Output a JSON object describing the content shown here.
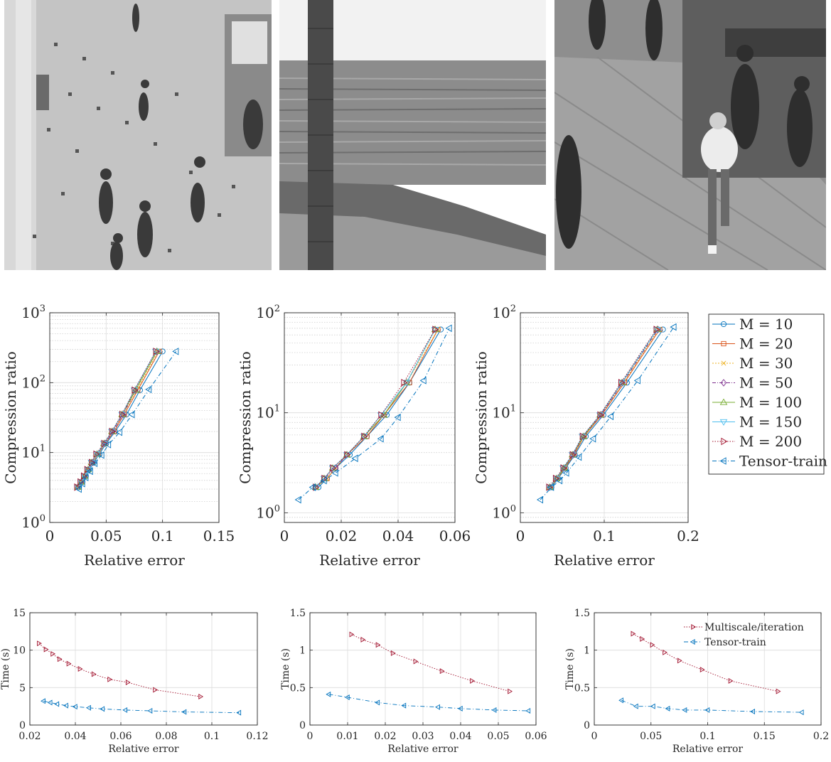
{
  "photos": [
    {
      "name": "photo-shopping-mall"
    },
    {
      "name": "photo-palm-sea"
    },
    {
      "name": "photo-hall-people"
    }
  ],
  "colors": {
    "M10": "#0072bd",
    "M20": "#d95319",
    "M30": "#edb120",
    "M50": "#7e2f8e",
    "M100": "#77ac30",
    "M150": "#4dbeee",
    "M200": "#a2142f",
    "TT": "#0072bd"
  },
  "chart_data": [
    {
      "type": "line",
      "scale": "log",
      "xlabel": "Relative error",
      "ylabel": "Compression ratio",
      "xlim": [
        0,
        0.15
      ],
      "ylim": [
        1,
        1000
      ],
      "xticks": [
        0,
        0.05,
        0.1,
        0.15
      ],
      "xtick_labels": [
        "0",
        "0.05",
        "0.1",
        "0.15"
      ],
      "ytick_exps": [
        0,
        1,
        2,
        3
      ],
      "grid": true,
      "series": [
        {
          "name": "M = 10",
          "key": "M10",
          "x": [
            0.026,
            0.029,
            0.032,
            0.035,
            0.039,
            0.044,
            0.05,
            0.058,
            0.068,
            0.08,
            0.1
          ],
          "y": [
            3.2,
            3.8,
            4.6,
            5.7,
            7.2,
            9.5,
            13.5,
            20,
            35,
            78,
            280
          ]
        },
        {
          "name": "M = 20",
          "key": "M20",
          "x": [
            0.025,
            0.028,
            0.031,
            0.034,
            0.038,
            0.043,
            0.049,
            0.057,
            0.066,
            0.078,
            0.097
          ],
          "y": [
            3.2,
            3.8,
            4.6,
            5.7,
            7.2,
            9.5,
            13.5,
            20,
            35,
            78,
            280
          ]
        },
        {
          "name": "M = 30",
          "key": "M30",
          "x": [
            0.025,
            0.028,
            0.031,
            0.034,
            0.038,
            0.043,
            0.049,
            0.056,
            0.065,
            0.077,
            0.096
          ],
          "y": [
            3.2,
            3.8,
            4.6,
            5.7,
            7.2,
            9.5,
            13.5,
            20,
            35,
            78,
            280
          ]
        },
        {
          "name": "M = 50",
          "key": "M50",
          "x": [
            0.025,
            0.028,
            0.031,
            0.034,
            0.038,
            0.042,
            0.049,
            0.056,
            0.065,
            0.076,
            0.095
          ],
          "y": [
            3.2,
            3.8,
            4.6,
            5.7,
            7.2,
            9.5,
            13.5,
            20,
            35,
            78,
            280
          ]
        },
        {
          "name": "M = 100",
          "key": "M100",
          "x": [
            0.025,
            0.028,
            0.031,
            0.034,
            0.037,
            0.042,
            0.048,
            0.055,
            0.064,
            0.076,
            0.095
          ],
          "y": [
            3.2,
            3.8,
            4.6,
            5.7,
            7.2,
            9.5,
            13.5,
            20,
            35,
            78,
            280
          ]
        },
        {
          "name": "M = 150",
          "key": "M150",
          "x": [
            0.025,
            0.028,
            0.031,
            0.034,
            0.037,
            0.042,
            0.048,
            0.055,
            0.064,
            0.075,
            0.094
          ],
          "y": [
            3.2,
            3.8,
            4.6,
            5.7,
            7.2,
            9.5,
            13.5,
            20,
            35,
            78,
            280
          ]
        },
        {
          "name": "M = 200",
          "key": "M200",
          "x": [
            0.024,
            0.027,
            0.03,
            0.033,
            0.037,
            0.041,
            0.048,
            0.055,
            0.064,
            0.075,
            0.094
          ],
          "y": [
            3.2,
            3.8,
            4.6,
            5.7,
            7.2,
            9.5,
            13.5,
            20,
            35,
            78,
            280
          ]
        },
        {
          "name": "Tensor-train",
          "key": "TT",
          "x": [
            0.026,
            0.029,
            0.032,
            0.036,
            0.04,
            0.046,
            0.052,
            0.062,
            0.073,
            0.088,
            0.112
          ],
          "y": [
            3,
            3.6,
            4.4,
            5.4,
            7,
            9.2,
            13,
            19.5,
            35,
            80,
            280
          ]
        }
      ]
    },
    {
      "type": "line",
      "scale": "log",
      "xlabel": "Relative error",
      "ylabel": "Compression ratio",
      "xlim": [
        0,
        0.06
      ],
      "ylim": [
        0.8,
        100
      ],
      "xticks": [
        0,
        0.02,
        0.04,
        0.06
      ],
      "xtick_labels": [
        "0",
        "0.02",
        "0.04",
        "0.06"
      ],
      "ytick_exps": [
        0,
        1,
        2
      ],
      "grid": true,
      "series": [
        {
          "name": "M = 10",
          "key": "M10",
          "x": [
            0.012,
            0.015,
            0.018,
            0.023,
            0.029,
            0.036,
            0.044,
            0.055
          ],
          "y": [
            1.8,
            2.2,
            2.8,
            3.8,
            5.8,
            9.5,
            20,
            68
          ]
        },
        {
          "name": "M = 20",
          "key": "M20",
          "x": [
            0.011,
            0.015,
            0.018,
            0.022,
            0.029,
            0.035,
            0.044,
            0.054
          ],
          "y": [
            1.8,
            2.2,
            2.8,
            3.8,
            5.8,
            9.5,
            20,
            68
          ]
        },
        {
          "name": "M = 30",
          "key": "M30",
          "x": [
            0.011,
            0.015,
            0.018,
            0.022,
            0.028,
            0.035,
            0.043,
            0.054
          ],
          "y": [
            1.8,
            2.2,
            2.8,
            3.8,
            5.8,
            9.5,
            20,
            68
          ]
        },
        {
          "name": "M = 50",
          "key": "M50",
          "x": [
            0.011,
            0.014,
            0.018,
            0.022,
            0.028,
            0.035,
            0.043,
            0.053
          ],
          "y": [
            1.8,
            2.2,
            2.8,
            3.8,
            5.8,
            9.5,
            20,
            68
          ]
        },
        {
          "name": "M = 100",
          "key": "M100",
          "x": [
            0.011,
            0.014,
            0.017,
            0.022,
            0.028,
            0.035,
            0.043,
            0.053
          ],
          "y": [
            1.8,
            2.2,
            2.8,
            3.8,
            5.8,
            9.5,
            20,
            68
          ]
        },
        {
          "name": "M = 150",
          "key": "M150",
          "x": [
            0.011,
            0.014,
            0.017,
            0.022,
            0.028,
            0.034,
            0.043,
            0.053
          ],
          "y": [
            1.8,
            2.2,
            2.8,
            3.8,
            5.8,
            9.5,
            20,
            68
          ]
        },
        {
          "name": "M = 200",
          "key": "M200",
          "x": [
            0.011,
            0.014,
            0.017,
            0.022,
            0.028,
            0.034,
            0.042,
            0.053
          ],
          "y": [
            1.8,
            2.2,
            2.8,
            3.8,
            5.8,
            9.5,
            20,
            68
          ]
        },
        {
          "name": "Tensor-train",
          "key": "TT",
          "x": [
            0.005,
            0.01,
            0.014,
            0.018,
            0.025,
            0.034,
            0.04,
            0.049,
            0.058
          ],
          "y": [
            1.35,
            1.8,
            2.1,
            2.5,
            3.5,
            5.5,
            9,
            21,
            70
          ]
        }
      ]
    },
    {
      "type": "line",
      "scale": "log",
      "xlabel": "Relative error",
      "ylabel": "Compression ratio",
      "xlim": [
        0,
        0.2
      ],
      "ylim": [
        0.8,
        100
      ],
      "xticks": [
        0,
        0.1,
        0.2
      ],
      "xtick_labels": [
        "0",
        "0.1",
        "0.2"
      ],
      "ytick_exps": [
        0,
        1,
        2
      ],
      "grid": true,
      "series": [
        {
          "name": "M = 10",
          "key": "M10",
          "x": [
            0.037,
            0.045,
            0.054,
            0.065,
            0.078,
            0.099,
            0.127,
            0.17
          ],
          "y": [
            1.8,
            2.2,
            2.8,
            3.8,
            5.8,
            9.5,
            20,
            68
          ]
        },
        {
          "name": "M = 20",
          "key": "M20",
          "x": [
            0.036,
            0.044,
            0.053,
            0.064,
            0.076,
            0.097,
            0.124,
            0.166
          ],
          "y": [
            1.8,
            2.2,
            2.8,
            3.8,
            5.8,
            9.5,
            20,
            68
          ]
        },
        {
          "name": "M = 30",
          "key": "M30",
          "x": [
            0.036,
            0.044,
            0.053,
            0.063,
            0.076,
            0.096,
            0.123,
            0.165
          ],
          "y": [
            1.8,
            2.2,
            2.8,
            3.8,
            5.8,
            9.5,
            20,
            68
          ]
        },
        {
          "name": "M = 50",
          "key": "M50",
          "x": [
            0.035,
            0.043,
            0.052,
            0.063,
            0.075,
            0.096,
            0.122,
            0.164
          ],
          "y": [
            1.8,
            2.2,
            2.8,
            3.8,
            5.8,
            9.5,
            20,
            68
          ]
        },
        {
          "name": "M = 100",
          "key": "M100",
          "x": [
            0.035,
            0.043,
            0.052,
            0.062,
            0.075,
            0.095,
            0.121,
            0.163
          ],
          "y": [
            1.8,
            2.2,
            2.8,
            3.8,
            5.8,
            9.5,
            20,
            68
          ]
        },
        {
          "name": "M = 150",
          "key": "M150",
          "x": [
            0.035,
            0.043,
            0.051,
            0.062,
            0.074,
            0.095,
            0.121,
            0.163
          ],
          "y": [
            1.8,
            2.2,
            2.8,
            3.8,
            5.8,
            9.5,
            20,
            68
          ]
        },
        {
          "name": "M = 200",
          "key": "M200",
          "x": [
            0.034,
            0.042,
            0.051,
            0.062,
            0.074,
            0.095,
            0.12,
            0.162
          ],
          "y": [
            1.8,
            2.2,
            2.8,
            3.8,
            5.8,
            9.5,
            20,
            68
          ]
        },
        {
          "name": "Tensor-train",
          "key": "TT",
          "x": [
            0.024,
            0.037,
            0.047,
            0.055,
            0.07,
            0.087,
            0.108,
            0.14,
            0.183
          ],
          "y": [
            1.35,
            1.8,
            2.1,
            2.5,
            3.6,
            5.5,
            9.2,
            21,
            72
          ]
        }
      ]
    },
    {
      "type": "line",
      "scale": "linear",
      "xlabel": "Relative error",
      "ylabel": "Time (s)",
      "xlim": [
        0.02,
        0.12
      ],
      "ylim": [
        0,
        15
      ],
      "xticks": [
        0.02,
        0.04,
        0.06,
        0.08,
        0.1,
        0.12
      ],
      "xtick_labels": [
        "0.02",
        "0.04",
        "0.06",
        "0.08",
        "0.1",
        "0.12"
      ],
      "yticks": [
        0,
        5,
        10,
        15
      ],
      "ytick_labels": [
        "0",
        "5",
        "10",
        "15"
      ],
      "grid": true,
      "series": [
        {
          "name": "Multiscale/iteration",
          "key": "M200",
          "x": [
            0.024,
            0.027,
            0.03,
            0.033,
            0.037,
            0.042,
            0.048,
            0.055,
            0.063,
            0.075,
            0.095
          ],
          "y": [
            10.9,
            10.1,
            9.5,
            8.8,
            8.2,
            7.5,
            6.8,
            6.1,
            5.7,
            4.7,
            3.8
          ]
        },
        {
          "name": "Tensor-train",
          "key": "TT",
          "x": [
            0.026,
            0.029,
            0.032,
            0.036,
            0.04,
            0.046,
            0.052,
            0.062,
            0.073,
            0.088,
            0.112
          ],
          "y": [
            3.2,
            3.0,
            2.8,
            2.6,
            2.45,
            2.3,
            2.15,
            2.0,
            1.9,
            1.75,
            1.65
          ]
        }
      ]
    },
    {
      "type": "line",
      "scale": "linear",
      "xlabel": "Relative error",
      "ylabel": "Time (s)",
      "xlim": [
        0,
        0.06
      ],
      "ylim": [
        0,
        1.5
      ],
      "xticks": [
        0,
        0.01,
        0.02,
        0.03,
        0.04,
        0.05,
        0.06
      ],
      "xtick_labels": [
        "0",
        "0.01",
        "0.02",
        "0.03",
        "0.04",
        "0.05",
        "0.06"
      ],
      "yticks": [
        0,
        0.5,
        1,
        1.5
      ],
      "ytick_labels": [
        "0",
        "0.5",
        "1",
        "1.5"
      ],
      "grid": true,
      "series": [
        {
          "name": "Multiscale/iteration",
          "key": "M200",
          "x": [
            0.011,
            0.014,
            0.018,
            0.022,
            0.028,
            0.035,
            0.043,
            0.053
          ],
          "y": [
            1.21,
            1.14,
            1.07,
            0.96,
            0.85,
            0.72,
            0.59,
            0.45
          ]
        },
        {
          "name": "Tensor-train",
          "key": "TT",
          "x": [
            0.005,
            0.01,
            0.018,
            0.025,
            0.034,
            0.04,
            0.049,
            0.058
          ],
          "y": [
            0.41,
            0.37,
            0.3,
            0.26,
            0.24,
            0.22,
            0.2,
            0.19
          ]
        }
      ]
    },
    {
      "type": "line",
      "scale": "linear",
      "xlabel": "Relative error",
      "ylabel": "Time (s)",
      "xlim": [
        0,
        0.2
      ],
      "ylim": [
        0,
        1.5
      ],
      "xticks": [
        0,
        0.05,
        0.1,
        0.15,
        0.2
      ],
      "xtick_labels": [
        "0",
        "0.05",
        "0.1",
        "0.15",
        "0.2"
      ],
      "yticks": [
        0,
        0.5,
        1,
        1.5
      ],
      "ytick_labels": [
        "0",
        "0.5",
        "1",
        "1.5"
      ],
      "grid": true,
      "legend": "top-right",
      "series": [
        {
          "name": "Multiscale/iteration",
          "key": "M200",
          "x": [
            0.034,
            0.042,
            0.051,
            0.062,
            0.075,
            0.095,
            0.12,
            0.162
          ],
          "y": [
            1.22,
            1.15,
            1.07,
            0.97,
            0.86,
            0.74,
            0.59,
            0.45
          ]
        },
        {
          "name": "Tensor-train",
          "key": "TT",
          "x": [
            0.024,
            0.037,
            0.052,
            0.065,
            0.08,
            0.1,
            0.14,
            0.183
          ],
          "y": [
            0.33,
            0.25,
            0.25,
            0.22,
            0.2,
            0.2,
            0.18,
            0.17
          ]
        }
      ]
    }
  ],
  "legend_labels": [
    "M = 10",
    "M = 20",
    "M = 30",
    "M = 50",
    "M = 100",
    "M = 150",
    "M = 200",
    "Tensor-train"
  ],
  "time_legend_labels": [
    "Multiscale/iteration",
    "Tensor-train"
  ]
}
